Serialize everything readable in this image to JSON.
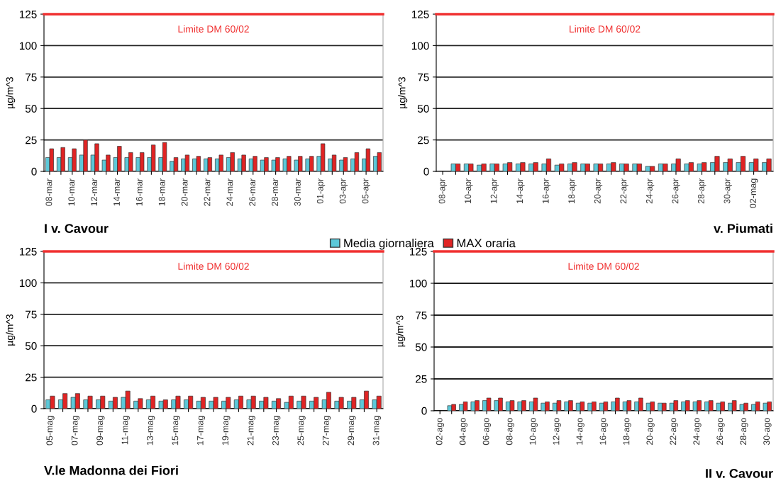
{
  "chart_data": [
    {
      "type": "bar",
      "title": "I v. Cavour",
      "ylabel": "µg/m^3",
      "legend": "bottom",
      "grid": "y",
      "categories": [
        "08-mar",
        null,
        "10-mar",
        null,
        "12-mar",
        null,
        "14-mar",
        null,
        "16-mar",
        null,
        "18-mar",
        null,
        "20-mar",
        null,
        "22-mar",
        null,
        "24-mar",
        null,
        "26-mar",
        null,
        "28-mar",
        null,
        "30-mar",
        null,
        "01-apr",
        null,
        "03-apr",
        null,
        "05-apr",
        null
      ],
      "series": [
        {
          "name": "Media giornaliera",
          "color": "#5cc8d8",
          "values": [
            11,
            11,
            11,
            13,
            13,
            9,
            11,
            11,
            11,
            11,
            11,
            8,
            10,
            10,
            10,
            10,
            11,
            10,
            10,
            9,
            9,
            10,
            9,
            10,
            12,
            10,
            9,
            10,
            10,
            12
          ]
        },
        {
          "name": "MAX oraria",
          "color": "#e02424",
          "values": [
            18,
            19,
            18,
            25,
            22,
            13,
            20,
            15,
            15,
            21,
            23,
            11,
            13,
            12,
            11,
            13,
            15,
            13,
            12,
            11,
            11,
            12,
            12,
            12,
            22,
            13,
            11,
            15,
            18,
            15
          ]
        }
      ],
      "ylim": [
        0,
        125
      ],
      "yticks": [
        0,
        25,
        50,
        75,
        100,
        125
      ],
      "ref_lines": [
        {
          "axis": "y",
          "value": 125,
          "label": "Limite DM 60/02",
          "color": "#f03030"
        }
      ]
    },
    {
      "type": "bar",
      "title": "v. Piumati",
      "ylabel": "µg/m^3",
      "grid": "y",
      "categories": [
        "08-apr",
        null,
        "10-apr",
        null,
        "12-apr",
        null,
        "14-apr",
        null,
        "16-apr",
        null,
        "18-apr",
        null,
        "20-apr",
        null,
        "22-apr",
        null,
        "24-apr",
        null,
        "26-apr",
        null,
        "28-apr",
        null,
        "30-apr",
        null,
        "02-mag",
        null
      ],
      "series": [
        {
          "color": "#5cc8d8",
          "values": [
            null,
            6,
            6,
            5,
            6,
            6,
            6,
            6,
            6,
            5,
            6,
            6,
            6,
            6,
            6,
            6,
            4,
            6,
            6,
            6,
            6,
            7,
            7,
            7,
            7,
            7
          ]
        },
        {
          "color": "#e02424",
          "values": [
            null,
            6,
            6,
            6,
            6,
            7,
            7,
            7,
            10,
            6,
            7,
            6,
            6,
            7,
            6,
            6,
            4,
            6,
            10,
            7,
            7,
            12,
            10,
            12,
            10,
            10
          ]
        }
      ],
      "ylim": [
        0,
        125
      ],
      "yticks": [
        0,
        25,
        50,
        75,
        100,
        125
      ],
      "ref_lines": [
        {
          "axis": "y",
          "value": 125,
          "label": "Limite DM 60/02",
          "color": "#f03030"
        }
      ]
    },
    {
      "type": "bar",
      "title": "V.le Madonna dei Fiori",
      "ylabel": "µg/m^3",
      "grid": "y",
      "categories": [
        "05-mag",
        null,
        "07-mag",
        null,
        "09-mag",
        null,
        "11-mag",
        null,
        "13-mag",
        null,
        "15-mag",
        null,
        "17-mag",
        null,
        "19-mag",
        null,
        "21-mag",
        null,
        "23-mag",
        null,
        "25-mag",
        null,
        "27-mag",
        null,
        "29-mag",
        null,
        "31-mag"
      ],
      "series": [
        {
          "color": "#5cc8d8",
          "values": [
            7,
            7,
            9,
            7,
            7,
            6,
            9,
            6,
            7,
            6,
            7,
            7,
            6,
            6,
            6,
            7,
            7,
            6,
            6,
            5,
            6,
            6,
            7,
            6,
            6,
            7,
            7
          ]
        },
        {
          "color": "#e02424",
          "values": [
            10,
            12,
            12,
            10,
            10,
            9,
            14,
            8,
            10,
            7,
            10,
            10,
            9,
            9,
            9,
            10,
            10,
            9,
            8,
            10,
            10,
            9,
            13,
            9,
            9,
            14,
            10
          ]
        }
      ],
      "ylim": [
        0,
        125
      ],
      "yticks": [
        0,
        25,
        50,
        75,
        100,
        125
      ],
      "ref_lines": [
        {
          "axis": "y",
          "value": 125,
          "label": "Limite DM 60/02",
          "color": "#f03030"
        }
      ]
    },
    {
      "type": "bar",
      "title": "II v. Cavour",
      "ylabel": "µg/m^3",
      "grid": "y",
      "categories": [
        "02-ago",
        null,
        "04-ago",
        null,
        "06-ago",
        null,
        "08-ago",
        null,
        "10-ago",
        null,
        "12-ago",
        null,
        "14-ago",
        null,
        "16-ago",
        null,
        "18-ago",
        null,
        "20-ago",
        null,
        "22-ago",
        null,
        "24-ago",
        null,
        "26-ago",
        null,
        "28-ago",
        null,
        "30-ago"
      ],
      "series": [
        {
          "color": "#5cc8d8",
          "values": [
            null,
            4,
            5,
            7,
            8,
            8,
            7,
            7,
            7,
            6,
            6,
            7,
            6,
            6,
            6,
            7,
            7,
            7,
            6,
            6,
            6,
            7,
            7,
            7,
            6,
            6,
            5,
            5,
            6
          ]
        },
        {
          "color": "#e02424",
          "values": [
            null,
            5,
            7,
            8,
            10,
            10,
            8,
            8,
            10,
            7,
            8,
            8,
            7,
            7,
            7,
            10,
            8,
            10,
            7,
            6,
            8,
            8,
            8,
            8,
            7,
            8,
            6,
            7,
            7
          ]
        }
      ],
      "ylim": [
        0,
        125
      ],
      "yticks": [
        0,
        25,
        50,
        75,
        100,
        125
      ],
      "ref_lines": [
        {
          "axis": "y",
          "value": 125,
          "label": "Limite DM 60/02",
          "color": "#f03030"
        }
      ]
    }
  ]
}
